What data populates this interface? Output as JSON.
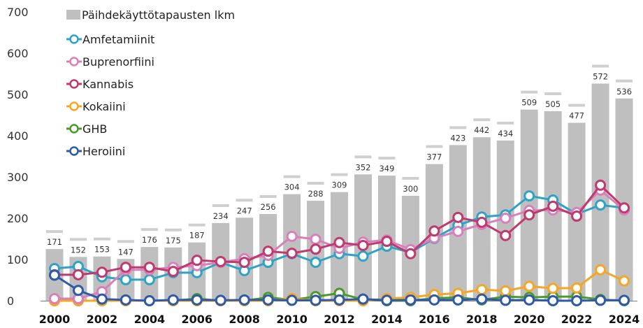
{
  "chart_data": {
    "type": "bar",
    "title": "",
    "xlabel": "",
    "ylabel": "",
    "ylim": [
      0,
      700
    ],
    "yticks": [
      0,
      100,
      200,
      300,
      400,
      500,
      600,
      700
    ],
    "grid": false,
    "legend_position": "top-left",
    "x": [
      2000,
      2001,
      2002,
      2003,
      2004,
      2005,
      2006,
      2007,
      2008,
      2009,
      2010,
      2011,
      2012,
      2013,
      2014,
      2015,
      2016,
      2017,
      2018,
      2019,
      2020,
      2021,
      2022,
      2023,
      2024
    ],
    "xtick_labels": [
      "2000",
      "2002",
      "2004",
      "2006",
      "2008",
      "2010",
      "2012",
      "2014",
      "2016",
      "2018",
      "2020",
      "2022",
      "2024"
    ],
    "bars": {
      "name": "Päihdekäyttötapausten lkm",
      "color": "#bfbfbf",
      "values": [
        171,
        152,
        153,
        147,
        176,
        175,
        187,
        234,
        247,
        256,
        304,
        288,
        309,
        352,
        349,
        300,
        377,
        423,
        442,
        434,
        509,
        505,
        477,
        572,
        536
      ]
    },
    "series": [
      {
        "name": "Amfetamiinit",
        "color": "#2ea3c6",
        "type": "line",
        "values": [
          78,
          83,
          58,
          51,
          51,
          68,
          68,
          93,
          73,
          93,
          114,
          93,
          114,
          108,
          132,
          117,
          151,
          183,
          203,
          208,
          254,
          244,
          210,
          232,
          225
        ]
      },
      {
        "name": "Buprenorfiini",
        "color": "#d97fbb",
        "type": "line",
        "values": [
          5,
          5,
          22,
          75,
          75,
          81,
          85,
          93,
          102,
          110,
          156,
          149,
          127,
          142,
          147,
          124,
          152,
          168,
          185,
          200,
          219,
          220,
          214,
          268,
          220
        ]
      },
      {
        "name": "Kannabis",
        "color": "#bf3a6e",
        "type": "line",
        "values": [
          63,
          63,
          69,
          81,
          81,
          71,
          98,
          95,
          93,
          120,
          115,
          125,
          141,
          134,
          144,
          114,
          169,
          202,
          190,
          158,
          208,
          229,
          205,
          280,
          225
        ]
      },
      {
        "name": "Kokaiini",
        "color": "#f5a623",
        "type": "line",
        "values": [
          0,
          0,
          0,
          0,
          0,
          0,
          0,
          0,
          0,
          0,
          5,
          0,
          0,
          0,
          5,
          8,
          15,
          18,
          27,
          24,
          35,
          30,
          31,
          75,
          48
        ]
      },
      {
        "name": "GHB",
        "color": "#4c9a2a",
        "type": "line",
        "values": [
          0,
          0,
          0,
          0,
          0,
          0,
          5,
          0,
          0,
          8,
          2,
          10,
          18,
          3,
          0,
          0,
          6,
          8,
          2,
          10,
          8,
          10,
          10,
          3,
          0
        ]
      },
      {
        "name": "Heroiini",
        "color": "#2f5aa8",
        "type": "line",
        "values": [
          62,
          25,
          4,
          2,
          0,
          2,
          2,
          1,
          2,
          2,
          1,
          1,
          2,
          4,
          1,
          2,
          2,
          2,
          4,
          1,
          2,
          0,
          0,
          1,
          1
        ]
      }
    ]
  }
}
